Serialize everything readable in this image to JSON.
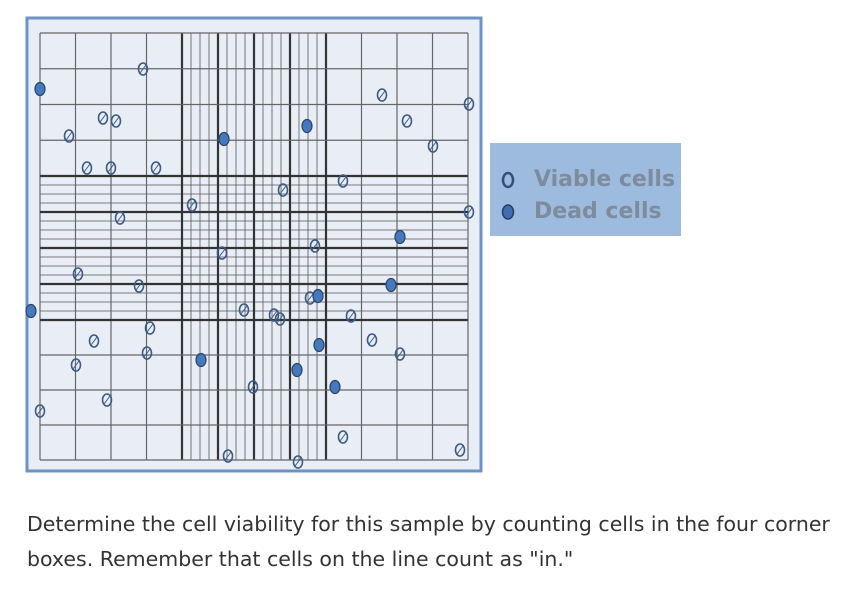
{
  "legend": {
    "items": [
      {
        "label": "Viable cells"
      },
      {
        "label": "Dead cells"
      }
    ]
  },
  "question": {
    "lines": [
      "Determine the cell viability for this sample by counting cells in the four corner",
      "boxes. Remember that cells on the line count as \"in.\""
    ]
  }
}
